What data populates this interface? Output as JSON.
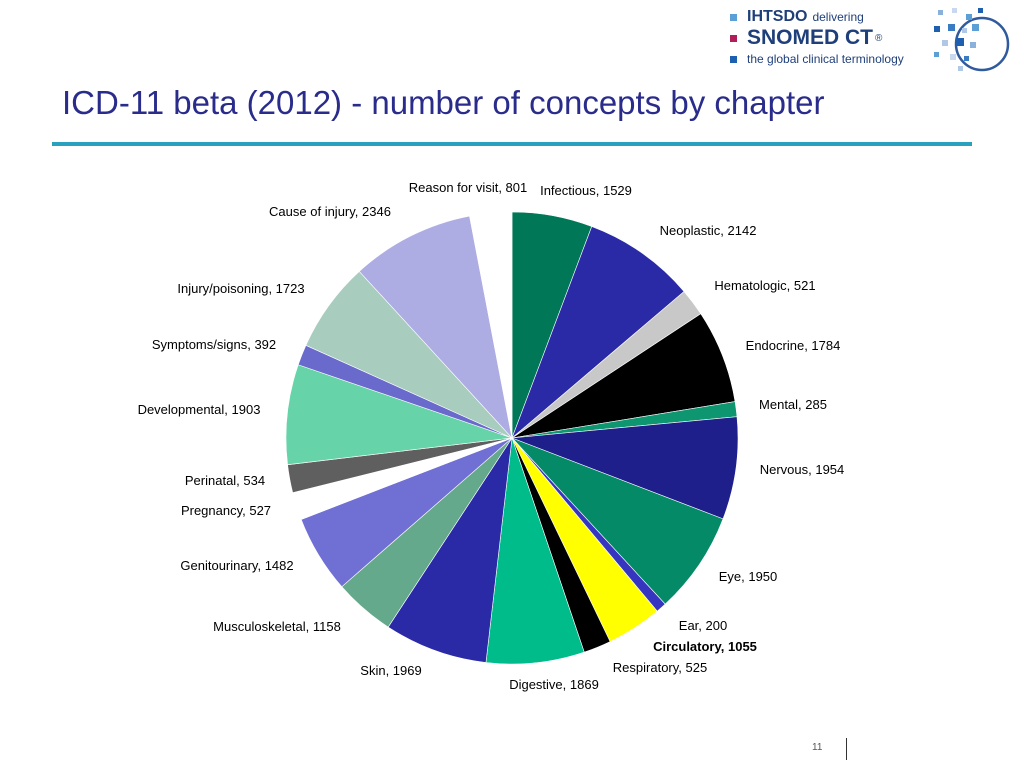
{
  "header": {
    "title": "ICD-11 beta (2012) - number of concepts by chapter"
  },
  "logo": {
    "org": "IHTSDO",
    "tagline": "delivering",
    "product": "SNOMED CT",
    "registered": "®",
    "subtitle": "the global clinical terminology"
  },
  "colors": {
    "title": "#2a2c8c",
    "rule": "#2aa0bf"
  },
  "footer": {
    "page_number": "11"
  },
  "chart_data": {
    "type": "pie",
    "start": "top",
    "direction": "clockwise",
    "slices": [
      {
        "label": "Infectious, 1529",
        "value": 1529,
        "color": "#007857"
      },
      {
        "label": "Neoplastic, 2142",
        "value": 2142,
        "color": "#2a2aa6"
      },
      {
        "label": "Hematologic, 521",
        "value": 521,
        "color": "#c8c8c8"
      },
      {
        "label": "Endocrine, 1784",
        "value": 1784,
        "color": "#000000"
      },
      {
        "label": "Mental, 285",
        "value": 285,
        "color": "#0e9670"
      },
      {
        "label": "Nervous, 1954",
        "value": 1954,
        "color": "#1f1f8c"
      },
      {
        "label": "Eye, 1950",
        "value": 1950,
        "color": "#058a68"
      },
      {
        "label": "Ear, 200",
        "value": 200,
        "color": "#3535c0"
      },
      {
        "label": "Circulatory, 1055",
        "value": 1055,
        "color": "#ffff00",
        "bold": true
      },
      {
        "label": "Respiratory, 525",
        "value": 525,
        "color": "#000000"
      },
      {
        "label": "Digestive, 1869",
        "value": 1869,
        "color": "#00bb8a"
      },
      {
        "label": "Skin, 1969",
        "value": 1969,
        "color": "#2a2aa6"
      },
      {
        "label": "Musculoskeletal, 1158",
        "value": 1158,
        "color": "#64a98b"
      },
      {
        "label": "Genitourinary, 1482",
        "value": 1482,
        "color": "#7070d4"
      },
      {
        "label": "Pregnancy, 527",
        "value": 527,
        "color": "#ffffff"
      },
      {
        "label": "Perinatal, 534",
        "value": 534,
        "color": "#5f5f5f"
      },
      {
        "label": "Developmental, 1903",
        "value": 1903,
        "color": "#66d4a8"
      },
      {
        "label": "Symptoms/signs, 392",
        "value": 392,
        "color": "#6a6acc"
      },
      {
        "label": "Injury/poisoning, 1723",
        "value": 1723,
        "color": "#a8ccbe"
      },
      {
        "label": "Cause of injury, 2346",
        "value": 2346,
        "color": "#adade4"
      },
      {
        "label": "Reason for visit, 801",
        "value": 801,
        "color": "#ffffff"
      }
    ]
  }
}
